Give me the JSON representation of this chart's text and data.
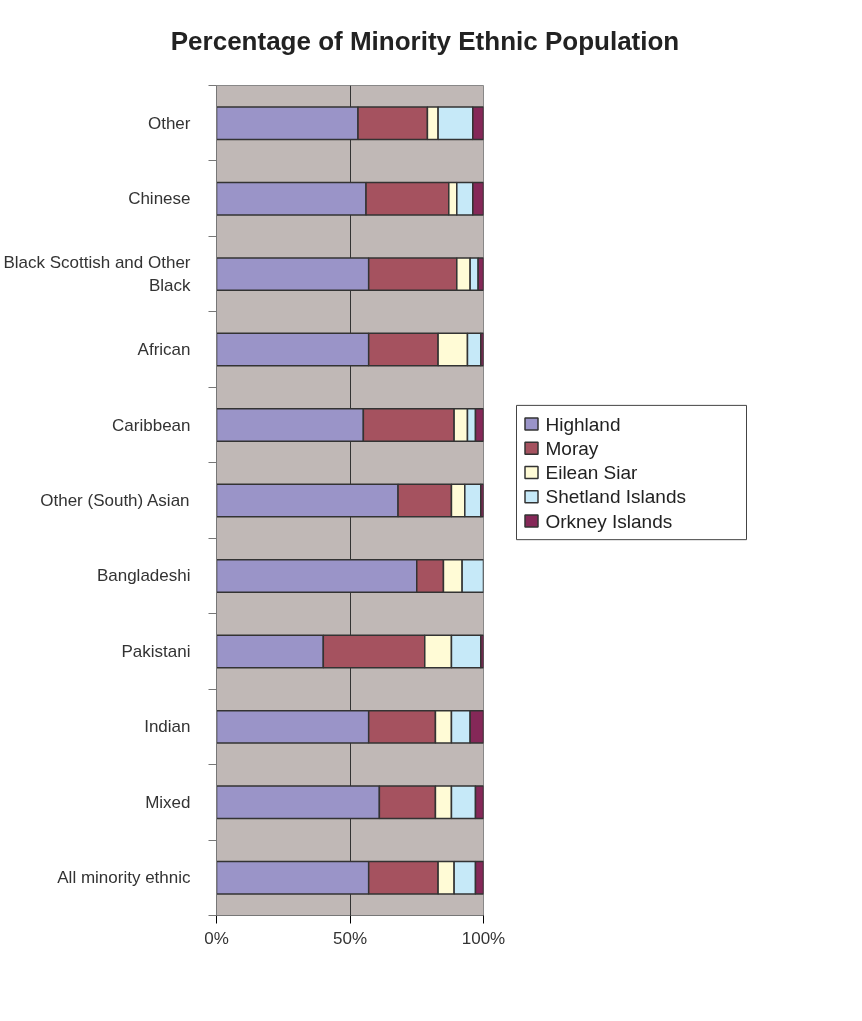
{
  "chart_data": {
    "type": "bar",
    "orientation": "horizontal",
    "stacked": true,
    "title": "Percentage of Minority Ethnic Population",
    "categories": [
      "Other",
      "Chinese",
      "Black Scottish and Other Black",
      "African",
      "Caribbean",
      "Other (South) Asian",
      "Bangladeshi",
      "Pakistani",
      "Indian",
      "Mixed",
      "All minority ethnic"
    ],
    "series": [
      {
        "name": "Highland",
        "color": "#9a94c8",
        "values": [
          53,
          56,
          57,
          57,
          55,
          68,
          75,
          40,
          57,
          61,
          57
        ]
      },
      {
        "name": "Moray",
        "color": "#a5525f",
        "values": [
          26,
          31,
          33,
          26,
          34,
          20,
          10,
          38,
          25,
          21,
          26
        ]
      },
      {
        "name": "Eilean Siar",
        "color": "#fffbd6",
        "values": [
          4,
          3,
          5,
          11,
          5,
          5,
          7,
          10,
          6,
          6,
          6
        ]
      },
      {
        "name": "Shetland Islands",
        "color": "#c6e9f8",
        "values": [
          13,
          6,
          3,
          5,
          3,
          6,
          8,
          11,
          7,
          9,
          8
        ]
      },
      {
        "name": "Orkney Islands",
        "color": "#852858",
        "values": [
          4,
          4,
          2,
          1,
          3,
          1,
          0,
          1,
          5,
          3,
          3
        ]
      }
    ],
    "xlim": [
      0,
      100
    ],
    "xticks": [
      {
        "value": 0,
        "label": "0%"
      },
      {
        "value": 50,
        "label": "50%"
      },
      {
        "value": 100,
        "label": "100%"
      }
    ],
    "grid": "x",
    "legend": "right"
  }
}
